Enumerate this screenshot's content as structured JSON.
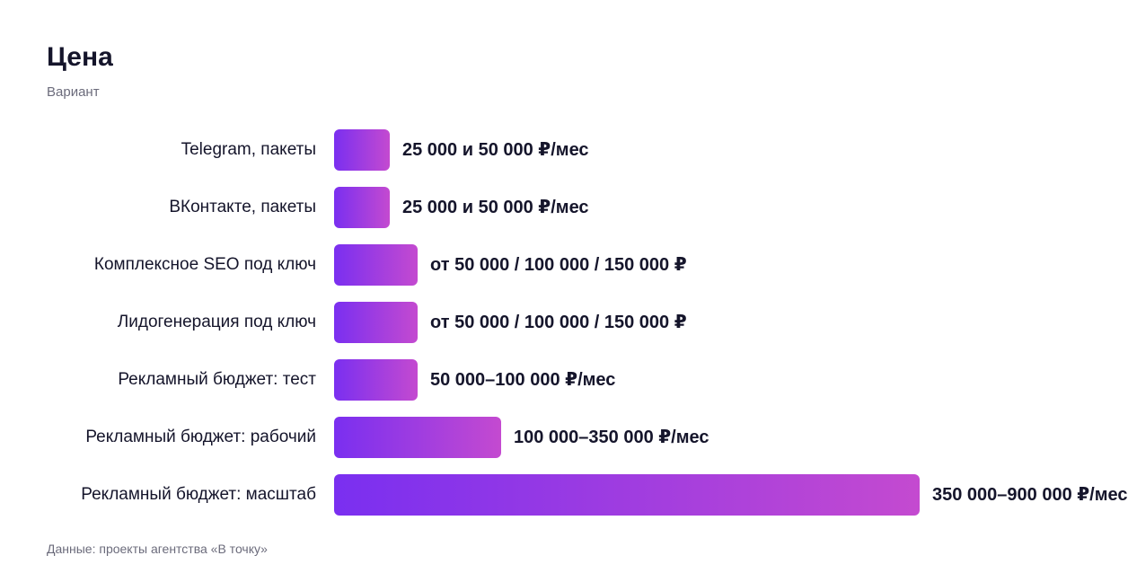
{
  "chart_data": {
    "type": "bar",
    "orientation": "horizontal",
    "title": "Цена",
    "subtitle": "Вариант",
    "source": "Данные: проекты агентства «В точку»",
    "categories": [
      "Telegram, пакеты",
      "ВКонтакте, пакеты",
      "Комплексное SEO под ключ",
      "Лидогенерация под ключ",
      "Рекламный бюджет: тест",
      "Рекламный бюджет: рабочий",
      "Рекламный бюджет: масштаб"
    ],
    "values": [
      1,
      1,
      1.5,
      1.5,
      1.5,
      3,
      10.5
    ],
    "value_labels": [
      "25 000 и 50 000 ₽/мес",
      "25 000 и 50 000 ₽/мес",
      "от 50 000 / 100 000 / 150 000 ₽",
      "от 50 000 / 100 000 / 150 000 ₽",
      "50 000–100 000 ₽/мес",
      "100 000–350 000 ₽/мес",
      "350 000–900 000 ₽/мес"
    ],
    "xlim": [
      0,
      10.5
    ],
    "grid": false,
    "legend": "none",
    "colors": {
      "bar_start": "#7a2ff0",
      "bar_end": "#c44ad0"
    }
  }
}
